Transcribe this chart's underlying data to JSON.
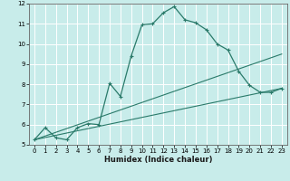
{
  "title": "",
  "xlabel": "Humidex (Indice chaleur)",
  "xlim": [
    -0.5,
    23.5
  ],
  "ylim": [
    5,
    12
  ],
  "xticks": [
    0,
    1,
    2,
    3,
    4,
    5,
    6,
    7,
    8,
    9,
    10,
    11,
    12,
    13,
    14,
    15,
    16,
    17,
    18,
    19,
    20,
    21,
    22,
    23
  ],
  "yticks": [
    5,
    6,
    7,
    8,
    9,
    10,
    11,
    12
  ],
  "bg_color": "#c8ecea",
  "grid_color": "#b0ddd9",
  "line_color": "#2a7a6a",
  "line1_x": [
    0,
    1,
    2,
    3,
    4,
    5,
    6,
    7,
    8,
    9,
    10,
    11,
    12,
    13,
    14,
    15,
    16,
    17,
    18,
    19,
    20,
    21,
    22,
    23
  ],
  "line1_y": [
    5.25,
    5.85,
    5.35,
    5.25,
    5.85,
    6.05,
    6.0,
    8.05,
    7.4,
    9.4,
    10.95,
    11.0,
    11.55,
    11.85,
    11.2,
    11.05,
    10.7,
    10.0,
    9.7,
    8.65,
    7.95,
    7.6,
    7.6,
    7.8
  ],
  "line2_x": [
    0,
    23
  ],
  "line2_y": [
    5.25,
    9.5
  ],
  "line3_x": [
    0,
    23
  ],
  "line3_y": [
    5.25,
    7.8
  ]
}
